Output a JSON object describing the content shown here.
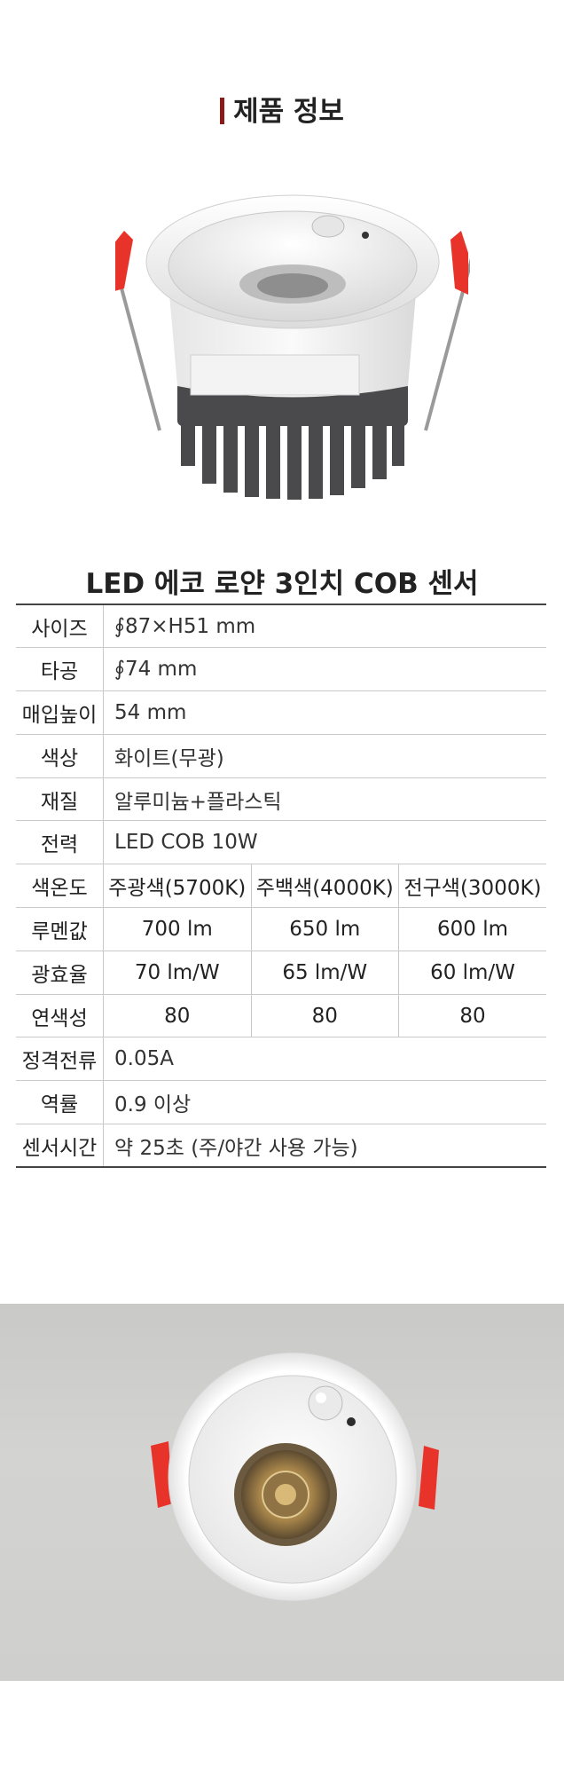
{
  "section": {
    "title": "제품 정보"
  },
  "product": {
    "name": "LED 에코 로얀 3인치 COB 센서"
  },
  "specs": {
    "size": {
      "label": "사이즈",
      "value": "∮87×H51 mm"
    },
    "cutout": {
      "label": "타공",
      "value": "∮74 mm"
    },
    "depth": {
      "label": "매입높이",
      "value": "54 mm"
    },
    "color": {
      "label": "색상",
      "value": "화이트(무광)"
    },
    "material": {
      "label": "재질",
      "value": "알루미늄+플라스틱"
    },
    "power": {
      "label": "전력",
      "value": "LED COB 10W"
    },
    "cct": {
      "label": "색온도",
      "values": [
        "주광색(5700K)",
        "주백색(4000K)",
        "전구색(3000K)"
      ]
    },
    "lumen": {
      "label": "루멘값",
      "values": [
        "700 lm",
        "650 lm",
        "600 lm"
      ]
    },
    "efficacy": {
      "label": "광효율",
      "values": [
        "70 lm/W",
        "65 lm/W",
        "60 lm/W"
      ]
    },
    "cri": {
      "label": "연색성",
      "values": [
        "80",
        "80",
        "80"
      ]
    },
    "current": {
      "label": "정격전류",
      "value": "0.05A"
    },
    "pf": {
      "label": "역률",
      "value": "0.9 이상"
    },
    "sensor": {
      "label": "센서시간",
      "value": "약 25초 (주/야간 사용 가능)"
    }
  },
  "colors": {
    "accent": "#8b1a1a",
    "clip": "#e8332b",
    "heatsink": "#4a4a4c"
  }
}
